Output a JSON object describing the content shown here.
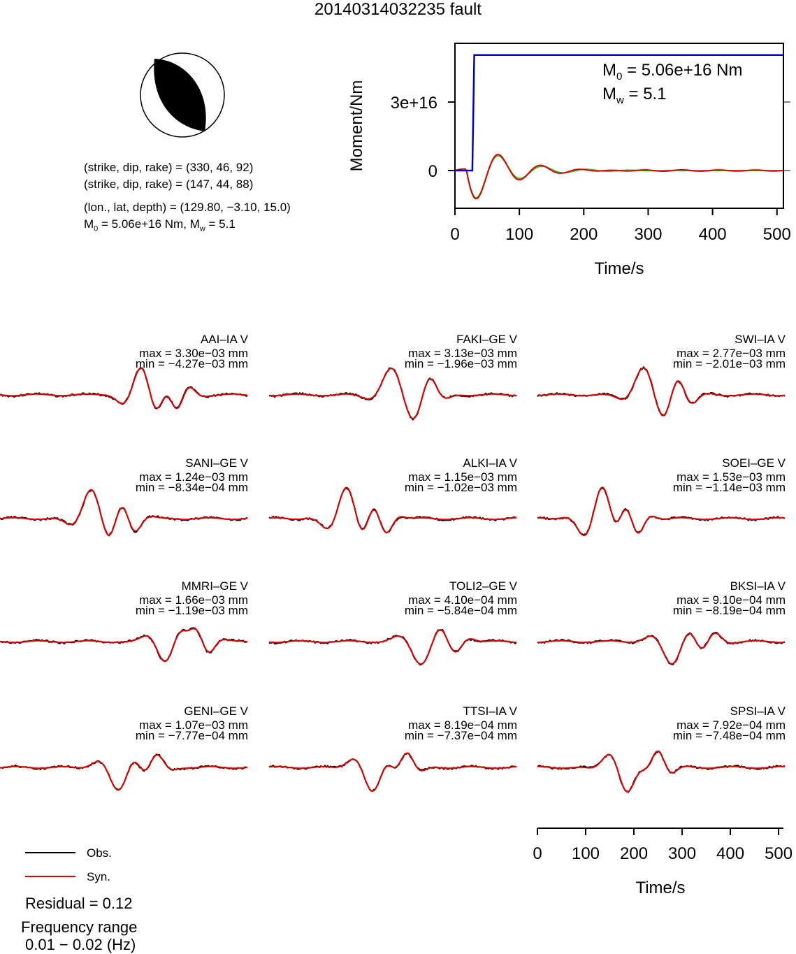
{
  "title": "20140314032235 fault",
  "info": {
    "line1": "(strike, dip, rake) = (330, 46, 92)",
    "line2": "(strike, dip, rake) = (147, 44, 88)",
    "line3": "(lon., lat, depth) = (129.80, −3.10, 15.0)",
    "line4_prefix": "M",
    "line4_sub": "0",
    "line4_mid": " = 5.06e+16 Nm, M",
    "line4_sub2": "w",
    "line4_end": " = 5.1"
  },
  "colors": {
    "obs": "#000000",
    "syn": "#e00000",
    "moment": "#0000cc",
    "stf_green": "#22cc22"
  },
  "chart_data": [
    {
      "type": "line",
      "name": "moment-rate",
      "xlabel": "Time/s",
      "ylabel": "Moment/Nm",
      "xlim": [
        0,
        510
      ],
      "x_ticks": [
        "0",
        "100",
        "200",
        "300",
        "400",
        "500"
      ],
      "y_ticks": [
        "0",
        "3e+16"
      ],
      "annotation": {
        "m0_sym": "M",
        "m0_sub": "0",
        "m0_val": " = 5.06e+16 Nm",
        "mw_sym": "M",
        "mw_sub": "w",
        "mw_val": " = 5.1"
      },
      "series": [
        {
          "name": "moment",
          "x": [
            0,
            27,
            30,
            510
          ],
          "y": [
            0,
            0,
            5.06e+16,
            5.06e+16
          ]
        }
      ]
    },
    {
      "type": "line",
      "name": "waveforms",
      "xlabel": "Time/s",
      "xlim": [
        0,
        510
      ],
      "x_ticks": [
        "0",
        "100",
        "200",
        "300",
        "400",
        "500"
      ],
      "stations": [
        {
          "name": "AAI–IA V",
          "max": "max = 3.30e−03 mm",
          "min": "min = −4.27e−03 mm"
        },
        {
          "name": "FAKI–GE V",
          "max": "max = 3.13e−03 mm",
          "min": "min = −1.96e−03 mm"
        },
        {
          "name": "SWI–IA V",
          "max": "max = 2.77e−03 mm",
          "min": "min = −2.01e−03 mm"
        },
        {
          "name": "SANI–GE V",
          "max": "max = 1.24e−03 mm",
          "min": "min = −8.34e−04 mm"
        },
        {
          "name": "ALKI–IA V",
          "max": "max = 1.15e−03 mm",
          "min": "min = −1.02e−03 mm"
        },
        {
          "name": "SOEI–GE V",
          "max": "max = 1.53e−03 mm",
          "min": "min = −1.14e−03 mm"
        },
        {
          "name": "MMRI–GE V",
          "max": "max = 1.66e−03 mm",
          "min": "min = −1.19e−03 mm"
        },
        {
          "name": "TOLI2–GE V",
          "max": "max = 4.10e−04 mm",
          "min": "min = −5.84e−04 mm"
        },
        {
          "name": "BKSI–IA V",
          "max": "max = 9.10e−04 mm",
          "min": "min = −8.19e−04 mm"
        },
        {
          "name": "GENI–GE V",
          "max": "max = 1.07e−03 mm",
          "min": "min = −7.77e−04 mm"
        },
        {
          "name": "TTSI–IA V",
          "max": "max = 8.19e−04 mm",
          "min": "min = −7.37e−04 mm"
        },
        {
          "name": "SPSI–IA V",
          "max": "max = 7.92e−04 mm",
          "min": "min = −7.48e−04 mm"
        }
      ]
    }
  ],
  "legend": {
    "obs": "Obs.",
    "syn": "Syn."
  },
  "residual": "Residual = 0.12",
  "freq_line1": "Frequency range",
  "freq_line2": "0.01 − 0.02 (Hz)"
}
